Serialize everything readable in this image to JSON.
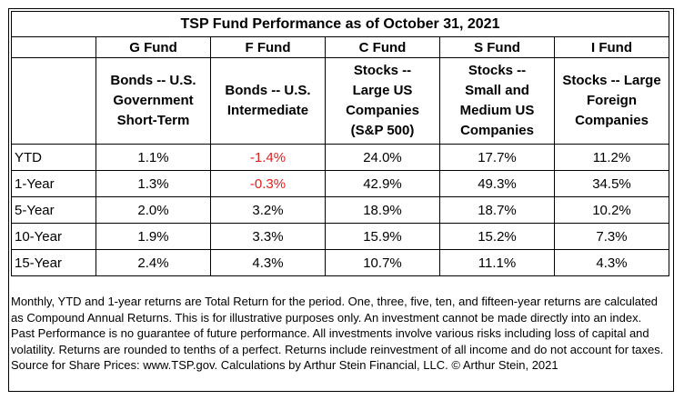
{
  "title": "TSP Fund Performance as of October 31, 2021",
  "funds": [
    {
      "name": "G Fund",
      "description": "Bonds -- U.S. Government Short-Term"
    },
    {
      "name": "F Fund",
      "description": "Bonds -- U.S. Intermediate"
    },
    {
      "name": "C Fund",
      "description": "Stocks -- Large US Companies (S&P 500)"
    },
    {
      "name": "S Fund",
      "description": "Stocks -- Small and Medium US Companies"
    },
    {
      "name": "I Fund",
      "description": "Stocks -- Large Foreign Companies"
    }
  ],
  "rows": [
    {
      "label": "YTD",
      "values": [
        "1.1%",
        "-1.4%",
        "24.0%",
        "17.7%",
        "11.2%"
      ]
    },
    {
      "label": "1-Year",
      "values": [
        "1.3%",
        "-0.3%",
        "42.9%",
        "49.3%",
        "34.5%"
      ]
    },
    {
      "label": "5-Year",
      "values": [
        "2.0%",
        "3.2%",
        "18.9%",
        "18.7%",
        "10.2%"
      ]
    },
    {
      "label": "10-Year",
      "values": [
        "1.9%",
        "3.3%",
        "15.9%",
        "15.2%",
        "7.3%"
      ]
    },
    {
      "label": "15-Year",
      "values": [
        "2.4%",
        "4.3%",
        "10.7%",
        "11.1%",
        "4.3%"
      ]
    }
  ],
  "colors": {
    "negative": "#e02020",
    "text": "#000000",
    "border": "#000000"
  },
  "footnote": "Monthly, YTD and 1-year returns are Total Return for the period. One, three, five, ten, and fifteen-year returns are calculated as Compound Annual Returns. This is for illustrative purposes only. An investment cannot be made directly into an index. Past Performance is no guarantee of future performance. All investments involve various risks including loss of capital and volatility. Returns are rounded to tenths of a perfect. Returns include reinvestment of all income and do not account for taxes. Source for Share Prices: www.TSP.gov. Calculations by Arthur Stein Financial, LLC. © Arthur Stein, 2021"
}
